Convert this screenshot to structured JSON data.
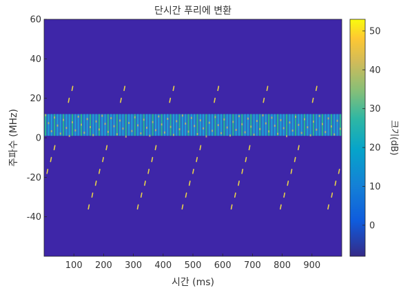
{
  "chart_data": {
    "type": "heatmap",
    "title": "단시간 푸리에 변환",
    "xlabel": "시간 (ms)",
    "ylabel": "주파수 (MHz)",
    "xlim": [
      0,
      1000
    ],
    "ylim": [
      -60,
      60
    ],
    "x_ticks": [
      100,
      200,
      300,
      400,
      500,
      600,
      700,
      800,
      900
    ],
    "y_ticks": [
      60,
      40,
      20,
      0,
      -20,
      -40
    ],
    "colorbar": {
      "label": "크기(dB)",
      "range": [
        -8,
        53
      ],
      "ticks": [
        50,
        40,
        30,
        20,
        10,
        0
      ],
      "colormap": "parula"
    },
    "background_level_db": -5,
    "band": {
      "freq_range_mhz": [
        1,
        12
      ],
      "pulse_period_ms": 10,
      "level_db_range": [
        20,
        40
      ]
    },
    "chirps": {
      "slope_mhz_per_ms": 0.5,
      "freq_range_mhz": [
        -35,
        30
      ],
      "level_db": 30,
      "sweep_starts_ms": [
        -25,
        150,
        315,
        465,
        630,
        795,
        955
      ]
    },
    "grid": false,
    "legend": "none"
  },
  "colors": {
    "background": "#3e26a8",
    "axis": "#262626",
    "band_low": "#1fa2d7",
    "band_high": "#2ab88a",
    "chirp": "#e8d34a"
  }
}
